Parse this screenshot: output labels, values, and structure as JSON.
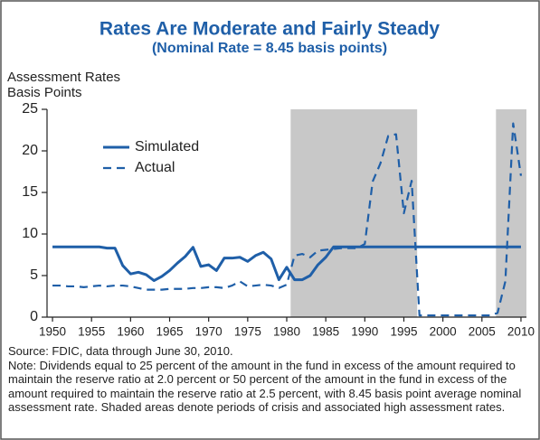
{
  "chart_data": {
    "type": "line",
    "title": "Rates Are Moderate and Fairly Steady",
    "subtitle": "(Nominal Rate = 8.45 basis points)",
    "ylabel": [
      "Assessment Rates",
      "Basis Points"
    ],
    "x": [
      1950,
      1951,
      1952,
      1953,
      1954,
      1955,
      1956,
      1957,
      1958,
      1959,
      1960,
      1961,
      1962,
      1963,
      1964,
      1965,
      1966,
      1967,
      1968,
      1969,
      1970,
      1971,
      1972,
      1973,
      1974,
      1975,
      1976,
      1977,
      1978,
      1979,
      1980,
      1981,
      1982,
      1983,
      1984,
      1985,
      1986,
      1987,
      1988,
      1989,
      1990,
      1991,
      1992,
      1993,
      1994,
      1995,
      1996,
      1997,
      1998,
      1999,
      2000,
      2001,
      2002,
      2003,
      2004,
      2005,
      2006,
      2007,
      2008,
      2009,
      2010
    ],
    "series": [
      {
        "name": "Simulated",
        "color": "#1f5fa8",
        "dash": false,
        "values": [
          8.45,
          8.45,
          8.45,
          8.45,
          8.45,
          8.45,
          8.45,
          8.3,
          8.3,
          6.2,
          5.2,
          5.4,
          5.1,
          4.4,
          4.9,
          5.6,
          6.5,
          7.3,
          8.4,
          6.1,
          6.3,
          5.6,
          7.1,
          7.1,
          7.2,
          6.7,
          7.4,
          7.8,
          7.0,
          4.5,
          6.0,
          4.5,
          4.5,
          5.0,
          6.3,
          7.2,
          8.45,
          8.45,
          8.45,
          8.45,
          8.45,
          8.45,
          8.45,
          8.45,
          8.45,
          8.45,
          8.45,
          8.45,
          8.45,
          8.45,
          8.45,
          8.45,
          8.45,
          8.45,
          8.45,
          8.45,
          8.45,
          8.45,
          8.45,
          8.45,
          8.45
        ]
      },
      {
        "name": "Actual",
        "color": "#1f5fa8",
        "dash": true,
        "values": [
          3.8,
          3.8,
          3.7,
          3.7,
          3.6,
          3.7,
          3.8,
          3.7,
          3.8,
          3.8,
          3.7,
          3.5,
          3.3,
          3.3,
          3.3,
          3.4,
          3.4,
          3.4,
          3.5,
          3.5,
          3.6,
          3.6,
          3.5,
          3.8,
          4.3,
          3.7,
          3.8,
          3.9,
          3.8,
          3.5,
          3.9,
          7.4,
          7.6,
          7.2,
          8.0,
          8.1,
          8.2,
          8.3,
          8.3,
          8.3,
          8.8,
          16.3,
          18.5,
          21.8,
          22.0,
          12.5,
          16.4,
          0.2,
          0.2,
          0.2,
          0.2,
          0.2,
          0.2,
          0.2,
          0.2,
          0.2,
          0.2,
          0.5,
          4.3,
          23.3,
          17.0
        ]
      }
    ],
    "shaded": [
      [
        1980.5,
        1996.7
      ],
      [
        2006.8,
        2010.7
      ]
    ],
    "shade_color": "#c8c8c8",
    "xlim": [
      1949.3,
      2010.7
    ],
    "xticks": [
      1950,
      1955,
      1960,
      1965,
      1970,
      1975,
      1980,
      1985,
      1990,
      1995,
      2000,
      2005,
      2010
    ],
    "ylim": [
      0,
      25
    ],
    "yticks": [
      0,
      5,
      10,
      15,
      20,
      25
    ],
    "grid": false,
    "legend": "upper left",
    "notes": [
      "Source: FDIC, data through June 30, 2010.",
      "Note: Dividends equal to 25 percent of the amount in the fund in excess of the amount required to maintain the reserve ratio at 2.0 percent or 50 percent of the amount in the fund in excess of the amount required to maintain the reserve ratio at 2.5 percent, with 8.45 basis point average nominal assessment rate. Shaded areas denote periods of crisis and associated high assessment rates."
    ]
  }
}
